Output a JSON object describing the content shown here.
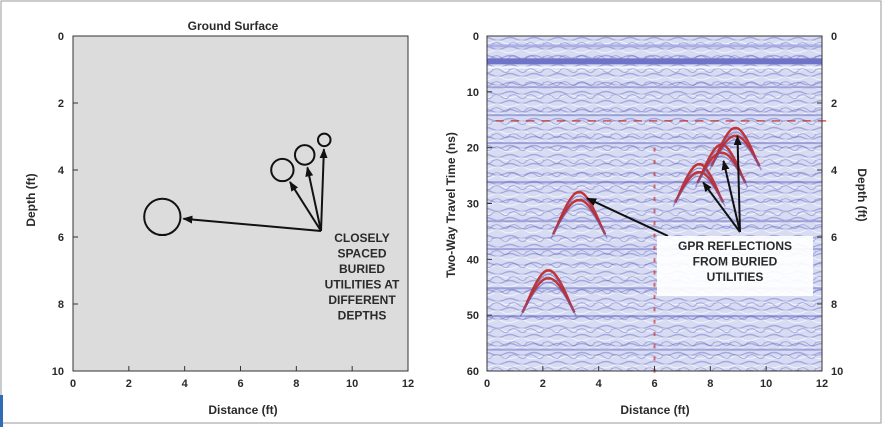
{
  "left_panel": {
    "title": "Ground Surface",
    "xlabel": "Distance (ft)",
    "ylabel": "Depth (ft)",
    "x_ticks": [
      "0",
      "2",
      "4",
      "6",
      "8",
      "10",
      "12"
    ],
    "y_ticks": [
      "0",
      "2",
      "4",
      "6",
      "8",
      "10"
    ],
    "annotation_lines": [
      "CLOSELY",
      "SPACED",
      "BURIED",
      "UTILITIES AT",
      "DIFFERENT",
      "DEPTHS"
    ],
    "utilities": [
      {
        "distance_ft": 3.2,
        "depth_ft": 5.4,
        "diameter_ft": 1.3
      },
      {
        "distance_ft": 7.5,
        "depth_ft": 4.0,
        "diameter_ft": 0.8
      },
      {
        "distance_ft": 8.3,
        "depth_ft": 3.55,
        "diameter_ft": 0.7
      },
      {
        "distance_ft": 9.0,
        "depth_ft": 3.1,
        "diameter_ft": 0.45
      }
    ],
    "background_color": "#dcdcdc"
  },
  "right_panel": {
    "xlabel": "Distance (ft)",
    "ylabel_left": "Two-Way Travel Time (ns)",
    "ylabel_right": "Depth (ft)",
    "x_ticks": [
      "0",
      "2",
      "4",
      "6",
      "8",
      "10",
      "12"
    ],
    "y_ticks_left": [
      "0",
      "10",
      "20",
      "30",
      "40",
      "50",
      "60"
    ],
    "y_ticks_right": [
      "0",
      "2",
      "4",
      "6",
      "8",
      "10"
    ],
    "annotation_lines": [
      "GPR REFLECTIONS",
      "FROM BURIED",
      "UTILITIES"
    ],
    "hyperbola_apexes": [
      {
        "distance_ft": 3.3,
        "time_ns": 28
      },
      {
        "distance_ft": 7.6,
        "time_ns": 23
      },
      {
        "distance_ft": 8.4,
        "time_ns": 19.5
      },
      {
        "distance_ft": 8.9,
        "time_ns": 16.5
      },
      {
        "distance_ft": 2.2,
        "time_ns": 42
      }
    ],
    "colors": {
      "background": "#d8dcf2",
      "band": "#6f74c8",
      "reflection": "#c42a2a"
    }
  }
}
